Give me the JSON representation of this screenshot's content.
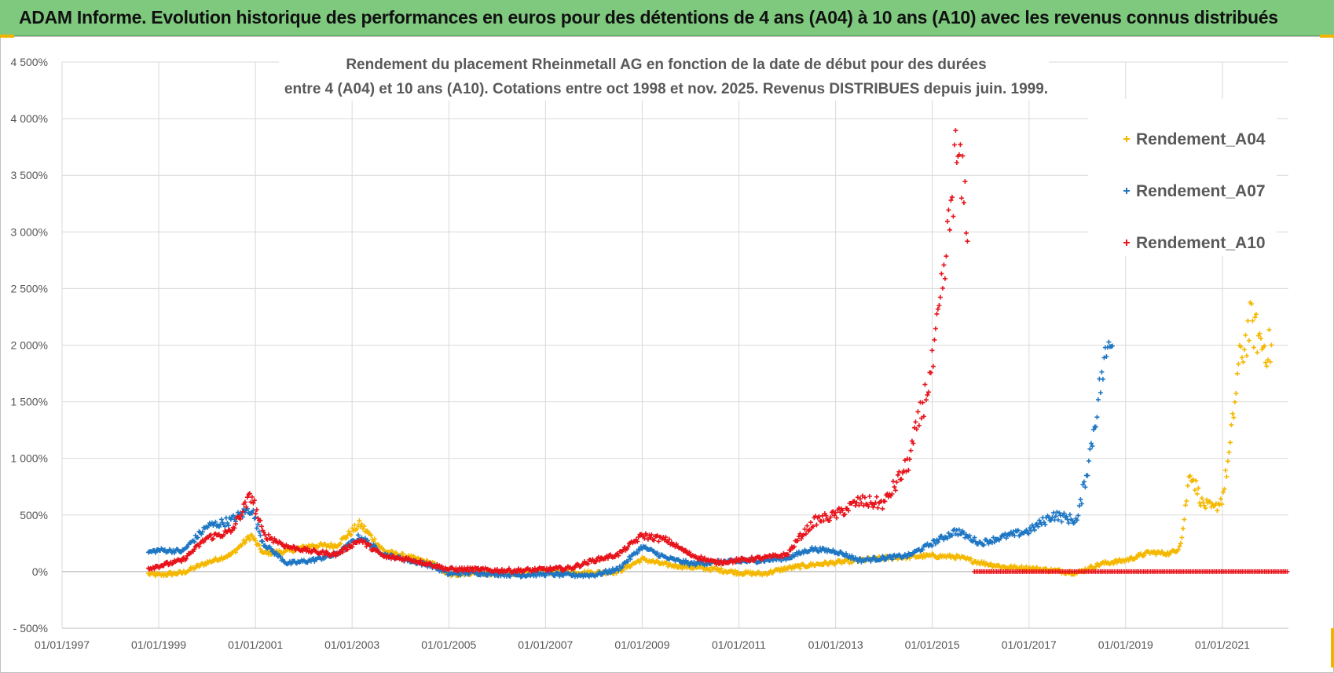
{
  "banner": {
    "title": "ADAM Informe. Evolution historique des performances en euros pour des détentions de 4 ans (A04) à 10 ans (A10) avec les revenus connus distribués"
  },
  "colors": {
    "banner_bg": "#7fc97f",
    "A04": "#f5b800",
    "A07": "#1f77c4",
    "A10": "#e8141c",
    "grid": "#d9d9d9",
    "zero_line": "#a6a6a6"
  },
  "chart_data": {
    "type": "scatter",
    "title_lines": [
      "Rendement du placement Rheinmetall AG en fonction de la date de début pour des durées",
      "entre 4 (A04) et 10 ans (A10).  Cotations entre oct 1998 et nov. 2025. Revenus DISTRIBUES depuis juin. 1999."
    ],
    "xlabel": "",
    "ylabel": "",
    "x_range": [
      "1997-01-01",
      "2022-05-15"
    ],
    "x_ticks": [
      "01/01/1997",
      "01/01/1999",
      "01/01/2001",
      "01/01/2003",
      "01/01/2005",
      "01/01/2007",
      "01/01/2009",
      "01/01/2011",
      "01/01/2013",
      "01/01/2015",
      "01/01/2017",
      "01/01/2019",
      "01/01/2021"
    ],
    "ylim": [
      -500,
      4500
    ],
    "y_ticks": [
      -500,
      0,
      500,
      1000,
      1500,
      2000,
      2500,
      3000,
      3500,
      4000,
      4500
    ],
    "y_tick_labels": [
      "- 500%",
      "0%",
      "500%",
      "1 000%",
      "1 500%",
      "2 000%",
      "2 500%",
      "3 000%",
      "3 500%",
      "4 000%",
      "4 500%"
    ],
    "grid": true,
    "legend_position": "right",
    "series": [
      {
        "name": "Rendement_A04",
        "x": [
          "1998-10-15",
          "1999-01-01",
          "1999-07-01",
          "2000-01-01",
          "2000-07-01",
          "2000-12-01",
          "2001-03-01",
          "2001-09-01",
          "2002-03-01",
          "2002-09-01",
          "2003-03-01",
          "2003-09-01",
          "2004-03-01",
          "2004-09-01",
          "2005-01-01",
          "2005-07-01",
          "2006-01-01",
          "2006-07-01",
          "2007-01-01",
          "2007-07-01",
          "2008-01-01",
          "2008-07-01",
          "2009-01-01",
          "2009-07-01",
          "2010-01-01",
          "2010-07-01",
          "2011-01-01",
          "2011-07-01",
          "2012-01-01",
          "2012-07-01",
          "2013-01-01",
          "2013-07-01",
          "2014-01-01",
          "2014-07-01",
          "2015-01-01",
          "2015-07-01",
          "2016-01-01",
          "2016-07-01",
          "2017-01-01",
          "2017-07-01",
          "2018-01-01",
          "2018-07-01",
          "2019-01-01",
          "2019-07-01",
          "2019-12-01",
          "2020-02-01",
          "2020-03-01",
          "2020-05-01",
          "2020-08-01",
          "2020-11-01",
          "2021-01-01",
          "2021-03-01",
          "2021-05-01",
          "2021-08-01",
          "2021-11-01",
          "2022-01-15"
        ],
        "y": [
          -20,
          -30,
          -10,
          80,
          150,
          320,
          160,
          180,
          230,
          230,
          420,
          180,
          130,
          70,
          -30,
          -10,
          -20,
          -10,
          0,
          -5,
          -10,
          0,
          110,
          60,
          40,
          20,
          -10,
          -20,
          30,
          60,
          80,
          100,
          120,
          130,
          140,
          130,
          80,
          40,
          30,
          10,
          -10,
          70,
          100,
          170,
          160,
          200,
          300,
          900,
          600,
          550,
          650,
          1100,
          1800,
          2200,
          2000,
          1950
        ]
      },
      {
        "name": "Rendement_A07",
        "x": [
          "1998-10-15",
          "1999-01-01",
          "1999-07-01",
          "2000-01-01",
          "2000-07-01",
          "2000-12-01",
          "2001-03-01",
          "2001-09-01",
          "2002-03-01",
          "2002-09-01",
          "2003-03-01",
          "2003-09-01",
          "2004-03-01",
          "2004-09-01",
          "2005-01-01",
          "2005-07-01",
          "2006-01-01",
          "2006-07-01",
          "2007-01-01",
          "2007-07-01",
          "2008-01-01",
          "2008-07-01",
          "2009-01-01",
          "2009-07-01",
          "2010-01-01",
          "2010-07-01",
          "2011-01-01",
          "2011-07-01",
          "2012-01-01",
          "2012-07-01",
          "2013-01-01",
          "2013-07-01",
          "2014-01-01",
          "2014-07-01",
          "2015-01-01",
          "2015-07-01",
          "2016-01-01",
          "2016-07-01",
          "2017-01-01",
          "2017-07-01",
          "2018-01-01",
          "2018-04-01",
          "2018-07-01",
          "2018-10-01"
        ],
        "y": [
          170,
          190,
          180,
          400,
          450,
          560,
          250,
          70,
          100,
          150,
          310,
          150,
          100,
          50,
          -20,
          -10,
          -20,
          -30,
          -20,
          -30,
          -30,
          20,
          220,
          120,
          70,
          80,
          90,
          100,
          120,
          200,
          180,
          100,
          120,
          140,
          250,
          360,
          250,
          310,
          360,
          500,
          450,
          1000,
          1700,
          2200
        ]
      },
      {
        "name": "Rendement_A10",
        "x": [
          "1998-10-15",
          "1999-01-01",
          "1999-07-01",
          "2000-01-01",
          "2000-07-01",
          "2000-12-01",
          "2001-03-01",
          "2001-09-01",
          "2002-03-01",
          "2002-09-01",
          "2003-03-01",
          "2003-09-01",
          "2004-03-01",
          "2004-09-01",
          "2005-01-01",
          "2005-07-01",
          "2006-01-01",
          "2006-07-01",
          "2007-01-01",
          "2007-07-01",
          "2008-01-01",
          "2008-07-01",
          "2009-01-01",
          "2009-07-01",
          "2010-01-01",
          "2010-07-01",
          "2011-01-01",
          "2011-07-01",
          "2012-01-01",
          "2012-04-01",
          "2012-08-01",
          "2013-01-01",
          "2013-07-01",
          "2014-01-01",
          "2014-07-01",
          "2015-01-01",
          "2015-04-01",
          "2015-07-01",
          "2015-10-01"
        ],
        "y": [
          30,
          50,
          100,
          300,
          350,
          680,
          330,
          220,
          180,
          150,
          280,
          130,
          110,
          60,
          20,
          20,
          10,
          10,
          20,
          30,
          100,
          150,
          320,
          280,
          150,
          80,
          100,
          120,
          150,
          300,
          450,
          500,
          620,
          600,
          950,
          1800,
          2600,
          3700,
          3100
        ]
      },
      {
        "name": "Rendement_A10",
        "x": [
          "2015-11-15",
          "2022-05-15"
        ],
        "y": [
          0,
          0
        ]
      }
    ]
  }
}
